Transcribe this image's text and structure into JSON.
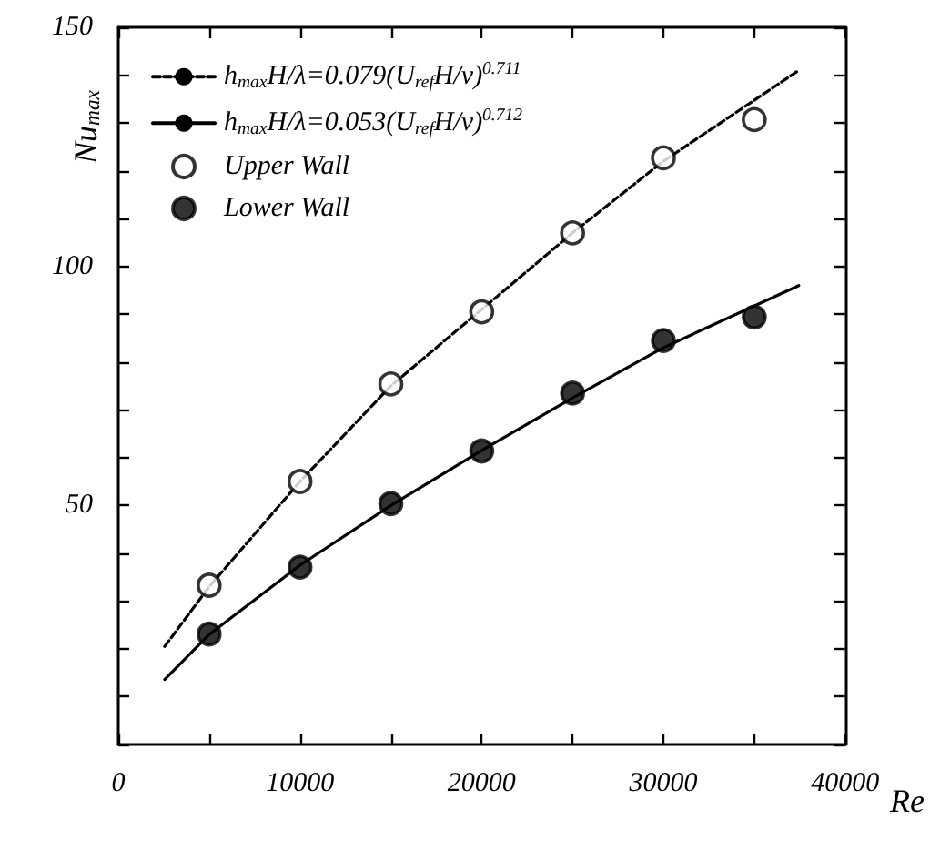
{
  "chart_data": {
    "type": "scatter",
    "xlabel": "Re",
    "ylabel": "Nu$_{max}$",
    "xlim": [
      0,
      40000
    ],
    "xticks": [
      0,
      {
        "value": 5000,
        "label": null
      },
      10000,
      {
        "value": 15000,
        "label": null
      },
      20000,
      {
        "value": 25000,
        "label": null
      },
      30000,
      {
        "value": 35000,
        "label": null
      },
      40000
    ],
    "ylim": [
      0,
      150
    ],
    "yticks": [
      {
        "value": 0,
        "label": null
      },
      {
        "value": 10,
        "label": null
      },
      {
        "value": 20,
        "label": null
      },
      {
        "value": 30,
        "label": null
      },
      {
        "value": 40,
        "label": null
      },
      50,
      {
        "value": 60,
        "label": null
      },
      {
        "value": 70,
        "label": null
      },
      {
        "value": 80,
        "label": null
      },
      {
        "value": 90,
        "label": null
      },
      100,
      {
        "value": 110,
        "label": null
      },
      {
        "value": 120,
        "label": null
      },
      {
        "value": 130,
        "label": null
      },
      {
        "value": 140,
        "label": null
      },
      150
    ],
    "grid": false,
    "legend": "top left",
    "series": [
      {
        "name": "h$_{max}$H/λ=0.079(U$_{ref}$H/ν)$^{0.711}$",
        "type": "line",
        "line_style": "dashed",
        "marker": "none",
        "color": "#000000",
        "x": [
          2550,
          5000,
          10000,
          15000,
          20000,
          25000,
          30000,
          37450
        ],
        "values": [
          20.5,
          33,
          55,
          75,
          91,
          107,
          122,
          141
        ]
      },
      {
        "name": "h$_{max}$H/λ=0.053(U$_{ref}$H/ν)$^{0.712}$",
        "type": "line",
        "line_style": "solid",
        "marker": "none",
        "color": "#000000",
        "x": [
          2550,
          5000,
          10000,
          15000,
          20000,
          25000,
          30000,
          37450
        ],
        "values": [
          13.6,
          23,
          37.5,
          50,
          61.5,
          72.5,
          83,
          96
        ]
      },
      {
        "name": "Upper Wall",
        "marker": "circle",
        "color": "#ffffff",
        "x": [
          5000,
          10000,
          15000,
          20000,
          25000,
          30000,
          35000
        ],
        "values": [
          33.3,
          55,
          75.4,
          90.5,
          107,
          122.7,
          130.7
        ]
      },
      {
        "name": "Lower Wall",
        "marker": "circle",
        "color": "#000000",
        "x": [
          5000,
          10000,
          15000,
          20000,
          25000,
          30000,
          35000
        ],
        "values": [
          23.1,
          37.1,
          50.4,
          61.4,
          73.5,
          84.5,
          89.4
        ]
      }
    ]
  }
}
